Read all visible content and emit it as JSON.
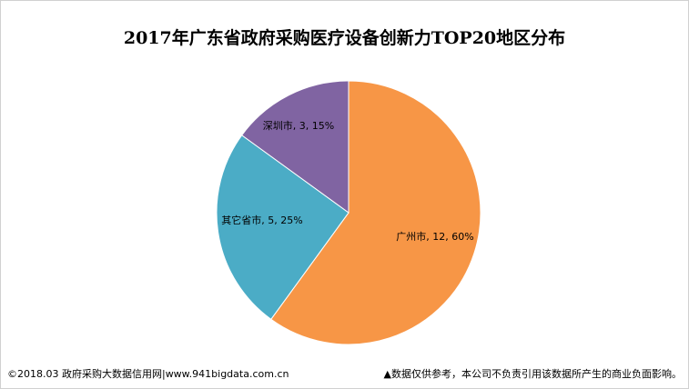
{
  "chart_data": {
    "type": "pie",
    "title": "2017年广东省政府采购医疗设备创新力TOP20地区分布",
    "slices": [
      {
        "name": "广州市",
        "value": 12,
        "percent": "60%",
        "label": "广州市, 12, 60%",
        "color": "#F79646"
      },
      {
        "name": "其它省市",
        "value": 5,
        "percent": "25%",
        "label": "其它省市, 5, 25%",
        "color": "#4BACC6"
      },
      {
        "name": "深圳市",
        "value": 3,
        "percent": "15%",
        "label": "深圳市, 3, 15%",
        "color": "#8064A2"
      }
    ],
    "start": "12 o'clock",
    "direction": "clockwise",
    "legend": "none"
  },
  "footer": {
    "source": "©2018.03 政府采购大数据信用网|www.941bigdata.com.cn",
    "disclaimer": "▲数据仅供参考，本公司不负责引用该数据所产生的商业负面影响。"
  }
}
